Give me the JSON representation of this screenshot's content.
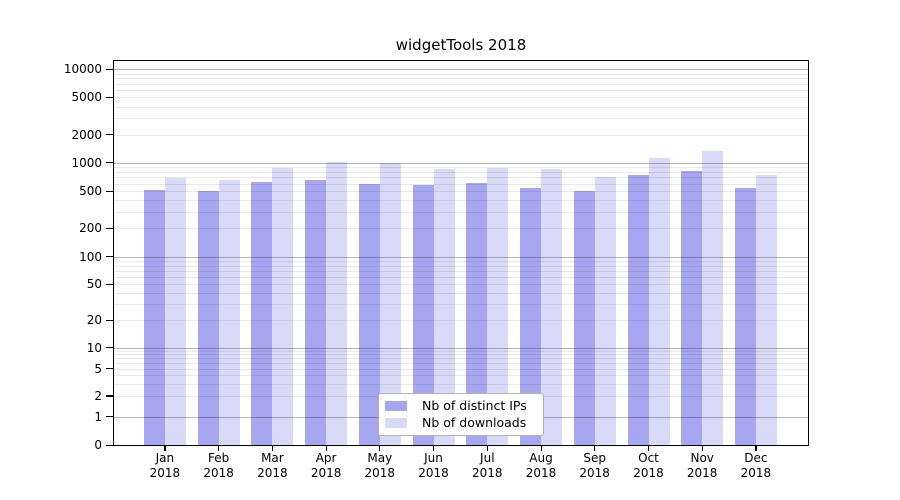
{
  "chart_data": {
    "type": "bar",
    "title": "widgetTools 2018",
    "categories": [
      "Jan",
      "Feb",
      "Mar",
      "Apr",
      "May",
      "Jun",
      "Jul",
      "Aug",
      "Sep",
      "Oct",
      "Nov",
      "Dec"
    ],
    "category_year": "2018",
    "series": [
      {
        "name": "Nb of distinct IPs",
        "color": "#a6a6f1",
        "values": [
          515,
          495,
          625,
          660,
          590,
          580,
          610,
          545,
          500,
          745,
          815,
          540
        ]
      },
      {
        "name": "Nb of downloads",
        "color": "#d9d9f8",
        "values": [
          685,
          660,
          885,
          1020,
          985,
          850,
          885,
          850,
          700,
          1115,
          1340,
          745
        ]
      }
    ],
    "yscale": "log (with 0 baseline)",
    "ylim": [
      0,
      10000
    ],
    "ytick_values": [
      0,
      1,
      2,
      5,
      10,
      20,
      50,
      100,
      200,
      500,
      1000,
      2000,
      5000,
      10000
    ],
    "ytick_labels": [
      "0",
      "1",
      "2",
      "5",
      "10",
      "20",
      "50",
      "100",
      "200",
      "500",
      "1000",
      "2000",
      "5000",
      "10000"
    ],
    "grid": "horizontal, minor light / major dark at powers of 10",
    "legend_position": "inside lower center",
    "colors": {
      "background": "#ffffff",
      "spine": "#000000",
      "text": "#000000",
      "minor_grid": "#e9e9e9",
      "major_grid": "#b8b8b8",
      "legend_border": "#b3b3b3"
    }
  }
}
